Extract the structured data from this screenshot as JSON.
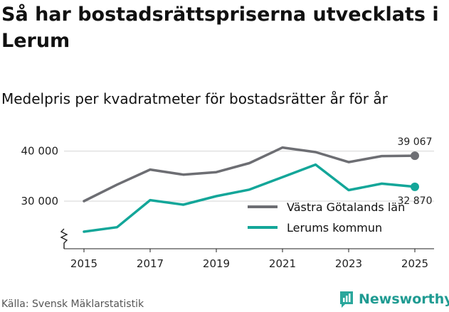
{
  "title": "Så har bostadsrättspriserna utvecklats i Lerum",
  "subtitle": "Medelpris per kvadratmeter för bostadsrätter år för år",
  "source": "Källa: Svensk Mäklarstatistik",
  "brand": "Newsworthy",
  "chart_data": {
    "type": "line",
    "x": [
      2015,
      2016,
      2017,
      2018,
      2019,
      2020,
      2021,
      2022,
      2023,
      2024,
      2025
    ],
    "x_ticks": [
      2015,
      2017,
      2019,
      2021,
      2023,
      2025
    ],
    "x_tick_labels": [
      "2015",
      "2017",
      "2019",
      "2021",
      "2023",
      "2025"
    ],
    "y_ticks": [
      30000,
      40000
    ],
    "y_tick_labels": [
      "30 000",
      "40 000"
    ],
    "ylim": [
      20500,
      41500
    ],
    "y_axis_broken": true,
    "series": [
      {
        "name": "Västra Götalands län",
        "color": "#6d6e73",
        "values": [
          30000,
          33300,
          36300,
          35300,
          35800,
          37600,
          40700,
          39800,
          37800,
          39000,
          39067
        ],
        "end_label": "39 067"
      },
      {
        "name": "Lerums kommun",
        "color": "#13a699",
        "values": [
          23900,
          24800,
          30200,
          29300,
          31000,
          32300,
          34800,
          37300,
          32200,
          33500,
          32870
        ],
        "end_label": "32 870"
      }
    ]
  }
}
